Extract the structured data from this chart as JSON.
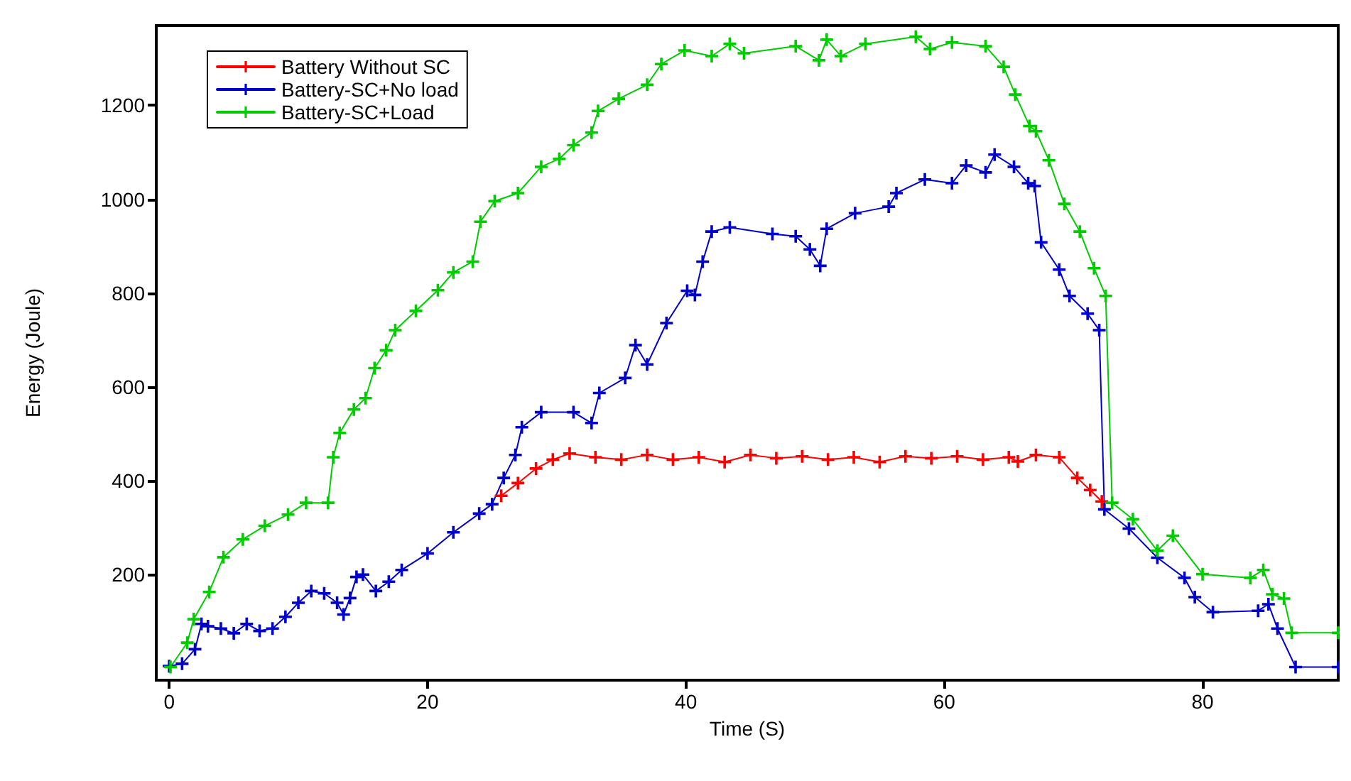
{
  "chart_data": {
    "type": "line",
    "xlabel": "Time (S)",
    "ylabel": "Energy (Joule)",
    "xlim": [
      -1,
      90.5
    ],
    "ylim": [
      -25,
      1370
    ],
    "xticks": [
      0,
      20,
      40,
      60,
      80
    ],
    "yticks": [
      200,
      400,
      600,
      800,
      1000,
      1200
    ],
    "grid": false,
    "legend": "top left",
    "marker": "cross",
    "line_style": "solid",
    "series": [
      {
        "name": "Battery Without SC",
        "color": "#ff0000",
        "x": [
          25.7,
          27,
          28.4,
          29.7,
          31,
          33,
          35,
          37,
          39,
          41,
          43,
          45,
          47,
          49,
          51,
          53,
          55,
          57,
          59,
          61,
          63,
          65,
          65.7,
          67.1,
          68.9,
          70.3,
          71.3,
          72.2
        ],
        "values": [
          368,
          395,
          426,
          445,
          458,
          450,
          445,
          455,
          445,
          450,
          440,
          455,
          448,
          452,
          445,
          450,
          440,
          452,
          448,
          452,
          445,
          450,
          441,
          455,
          450,
          406,
          380,
          356
        ]
      },
      {
        "name": "Battery-SC+No load",
        "color": "#0000cc",
        "x": [
          0,
          1,
          2,
          2.5,
          3,
          4,
          5,
          6,
          7,
          8,
          9,
          10,
          11,
          12,
          13,
          13.5,
          14,
          14.5,
          15,
          16,
          17,
          18,
          20,
          22,
          24,
          25,
          25.9,
          26.8,
          27.3,
          28.8,
          31.3,
          32.7,
          33.3,
          35.3,
          36.1,
          37,
          38.5,
          40.1,
          40.7,
          41.3,
          42,
          43.4,
          46.7,
          48.5,
          49.6,
          50.4,
          50.9,
          53.1,
          55.7,
          56.3,
          58.5,
          60.6,
          61.7,
          63.2,
          63.9,
          65.4,
          66.5,
          67,
          67.5,
          68.9,
          69.7,
          71.1,
          72,
          72.4,
          74.3,
          76.5,
          78.6,
          79.4,
          80.8,
          84.3,
          85.1,
          85.8,
          87.2,
          90.5
        ],
        "values": [
          5,
          10,
          41,
          95,
          90,
          85,
          75,
          95,
          80,
          85,
          110,
          140,
          165,
          160,
          140,
          115,
          150,
          195,
          200,
          165,
          185,
          210,
          245,
          290,
          330,
          350,
          406,
          455,
          514,
          546,
          546,
          523,
          587,
          619,
          689,
          648,
          736,
          805,
          796,
          867,
          931,
          940,
          926,
          921,
          893,
          858,
          937,
          970,
          984,
          1013,
          1042,
          1034,
          1072,
          1057,
          1095,
          1069,
          1034,
          1028,
          908,
          850,
          794,
          756,
          721,
          339,
          298,
          236,
          193,
          152,
          120,
          123,
          137,
          85,
          3,
          3
        ]
      },
      {
        "name": "Battery-SC+Load",
        "color": "#00cc00",
        "x": [
          0.1,
          1.4,
          1.9,
          3.1,
          4.2,
          5.7,
          7.4,
          9.2,
          10.6,
          12.3,
          12.7,
          13.2,
          14.3,
          15.2,
          15.9,
          16.8,
          17.5,
          19.1,
          20.8,
          22,
          23.5,
          24.1,
          25.2,
          27,
          28.8,
          30.2,
          31.3,
          32.7,
          33.2,
          34.8,
          37,
          38.1,
          39.9,
          42,
          43.4,
          44.5,
          48.5,
          50.3,
          50.9,
          52,
          53.9,
          57.8,
          58.9,
          60.6,
          63.2,
          64.6,
          65.5,
          66.6,
          67.1,
          68.1,
          69.3,
          70.5,
          71.6,
          72.5,
          73,
          74.6,
          76.5,
          77.7,
          80,
          83.7,
          84.7,
          85.4,
          86.3,
          86.9,
          90.5
        ],
        "values": [
          3,
          55,
          105,
          163,
          237,
          275,
          304,
          328,
          353,
          353,
          450,
          502,
          552,
          576,
          640,
          678,
          721,
          762,
          806,
          844,
          867,
          952,
          996,
          1013,
          1069,
          1086,
          1115,
          1142,
          1188,
          1214,
          1244,
          1288,
          1317,
          1305,
          1331,
          1311,
          1326,
          1296,
          1340,
          1305,
          1331,
          1346,
          1320,
          1334,
          1326,
          1282,
          1223,
          1156,
          1145,
          1083,
          990,
          931,
          853,
          794,
          353,
          318,
          251,
          283,
          201,
          193,
          210,
          158,
          149,
          76,
          76
        ]
      }
    ]
  }
}
